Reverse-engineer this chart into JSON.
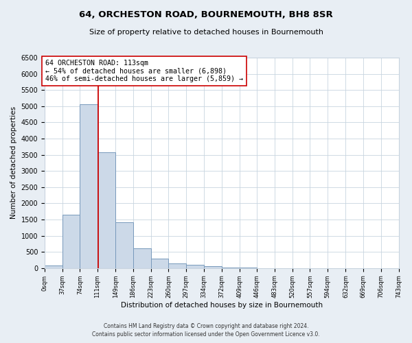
{
  "title": "64, ORCHESTON ROAD, BOURNEMOUTH, BH8 8SR",
  "subtitle": "Size of property relative to detached houses in Bournemouth",
  "xlabel": "Distribution of detached houses by size in Bournemouth",
  "ylabel": "Number of detached properties",
  "footer_lines": [
    "Contains HM Land Registry data © Crown copyright and database right 2024.",
    "Contains public sector information licensed under the Open Government Licence v3.0."
  ],
  "bin_edges": [
    0,
    37,
    74,
    111,
    149,
    186,
    223,
    260,
    297,
    334,
    372,
    409,
    446,
    483,
    520,
    557,
    594,
    632,
    669,
    706,
    743
  ],
  "bin_counts": [
    75,
    1650,
    5060,
    3580,
    1420,
    610,
    300,
    150,
    100,
    50,
    25,
    10,
    5,
    0,
    0,
    0,
    0,
    0,
    0,
    0
  ],
  "property_size": 113,
  "vline_color": "#cc0000",
  "bar_facecolor": "#ccd9e8",
  "bar_edgecolor": "#7799bb",
  "annotation_text": "64 ORCHESTON ROAD: 113sqm\n← 54% of detached houses are smaller (6,898)\n46% of semi-detached houses are larger (5,859) →",
  "annotation_boxcolor": "white",
  "annotation_edgecolor": "#cc0000",
  "ylim": [
    0,
    6500
  ],
  "background_color": "#e8eef4",
  "plot_background": "white",
  "grid_color": "#c8d4df",
  "tick_labels": [
    "0sqm",
    "37sqm",
    "74sqm",
    "111sqm",
    "149sqm",
    "186sqm",
    "223sqm",
    "260sqm",
    "297sqm",
    "334sqm",
    "372sqm",
    "409sqm",
    "446sqm",
    "483sqm",
    "520sqm",
    "557sqm",
    "594sqm",
    "632sqm",
    "669sqm",
    "706sqm",
    "743sqm"
  ]
}
